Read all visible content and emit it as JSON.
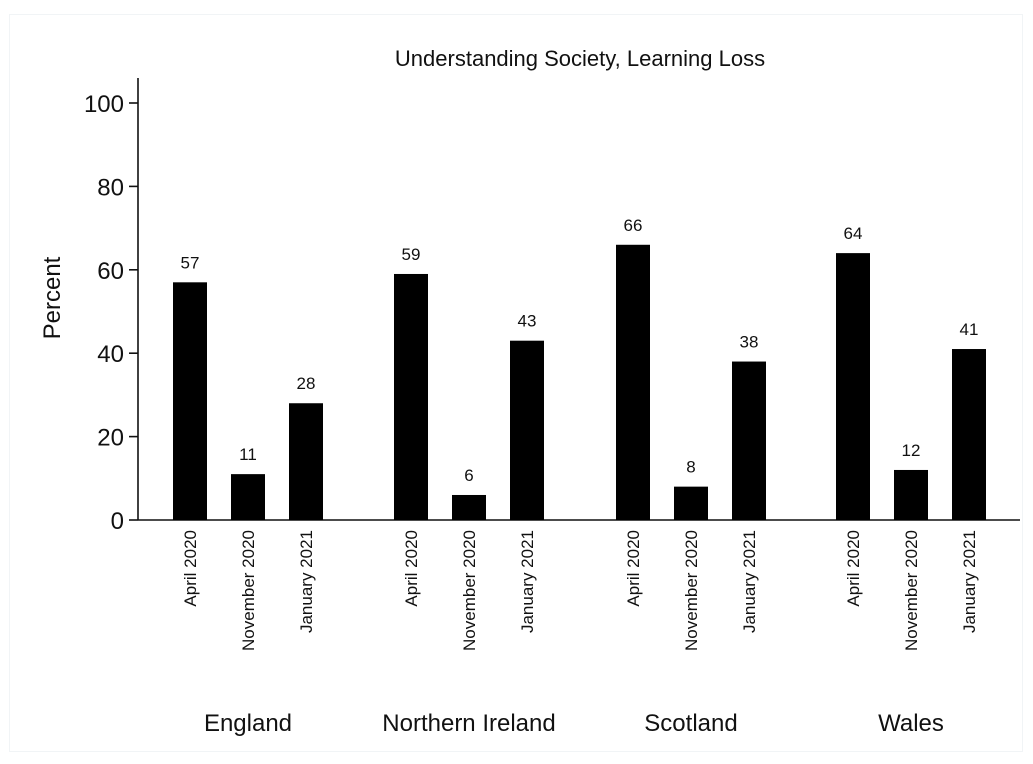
{
  "chart_data": {
    "type": "bar",
    "title": "Understanding Society, Learning Loss",
    "xlabel": "",
    "ylabel": "Percent",
    "ylim": [
      0,
      100
    ],
    "yticks": [
      0,
      20,
      40,
      60,
      80,
      100
    ],
    "grid": false,
    "legend": "none",
    "bar_color": "#000000",
    "groups": [
      "England",
      "Northern Ireland",
      "Scotland",
      "Wales"
    ],
    "categories": [
      "April 2020",
      "November 2020",
      "January 2021"
    ],
    "series": [
      {
        "values": [
          57,
          11,
          28
        ]
      },
      {
        "values": [
          59,
          6,
          43
        ]
      },
      {
        "values": [
          66,
          8,
          38
        ]
      },
      {
        "values": [
          64,
          12,
          41
        ]
      }
    ]
  }
}
